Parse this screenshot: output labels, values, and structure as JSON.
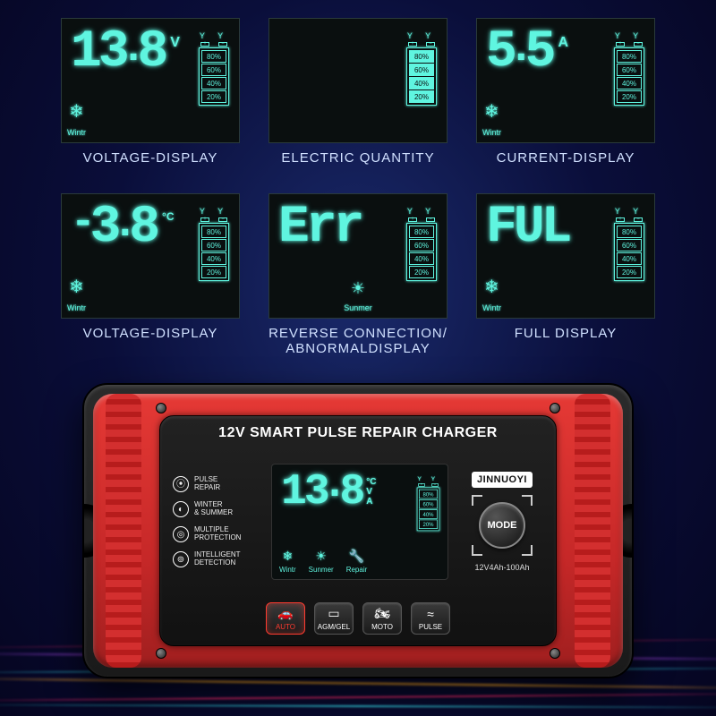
{
  "colors": {
    "lcd_glow": "#5ff5e0",
    "lcd_bg": "#0a0f0f",
    "device_red": "#d32f2f",
    "panel_bg": "#1a1a1a",
    "caption": "#d0e0ff",
    "active_btn": "#ff3b30",
    "bg_gradient": [
      "#1a2a6b",
      "#0a0e3a",
      "#050520"
    ]
  },
  "battery_levels": [
    "80%",
    "60%",
    "40%",
    "20%"
  ],
  "battery_terminals": [
    "Y",
    "Y"
  ],
  "screens": [
    {
      "value": "13.8",
      "unit": "V",
      "mode": "Wintr",
      "mode_icon": "snow",
      "caption": "VOLTAGE-DISPLAY"
    },
    {
      "value": "",
      "unit": "",
      "mode": "",
      "mode_icon": "",
      "caption": "ELECTRIC QUANTITY",
      "battery_filled": 4
    },
    {
      "value": "5.5",
      "unit": "A",
      "mode": "Wintr",
      "mode_icon": "snow",
      "caption": "CURRENT-DISPLAY"
    },
    {
      "value": "-3.8",
      "unit": "°C",
      "mode": "Wintr",
      "mode_icon": "snow",
      "caption": "VOLTAGE-DISPLAY"
    },
    {
      "value": "Err",
      "unit": "",
      "mode": "Sunmer",
      "mode_icon": "sun",
      "caption": "REVERSE CONNECTION/\nABNORMALDISPLAY"
    },
    {
      "value": "FUL",
      "unit": "",
      "mode": "Wintr",
      "mode_icon": "snow",
      "caption": "FULL DISPLAY"
    }
  ],
  "device": {
    "title": "12V SMART PULSE REPAIR CHARGER",
    "brand": "JINNUOYI",
    "mode_label": "MODE",
    "range": "12V4Ah-100Ah",
    "lcd": {
      "value": "13.8",
      "units": [
        "°C",
        "V",
        "A"
      ],
      "modes": [
        "Wintr",
        "Sunmer",
        "Repair"
      ]
    },
    "features": [
      {
        "icon": "⦿",
        "label": "PULSE\nREPAIR"
      },
      {
        "icon": "◐",
        "label": "WINTER\n& SUMMER"
      },
      {
        "icon": "◎",
        "label": "MULTIPLE\nPROTECTION"
      },
      {
        "icon": "⊚",
        "label": "INTELLIGENT\nDETECTION"
      }
    ],
    "buttons": [
      {
        "icon": "🚗",
        "label": "AUTO",
        "active": true
      },
      {
        "icon": "▭",
        "label": "AGM/GEL",
        "active": false
      },
      {
        "icon": "🏍",
        "label": "MOTO",
        "active": false
      },
      {
        "icon": "≈",
        "label": "PULSE",
        "active": false
      }
    ]
  }
}
